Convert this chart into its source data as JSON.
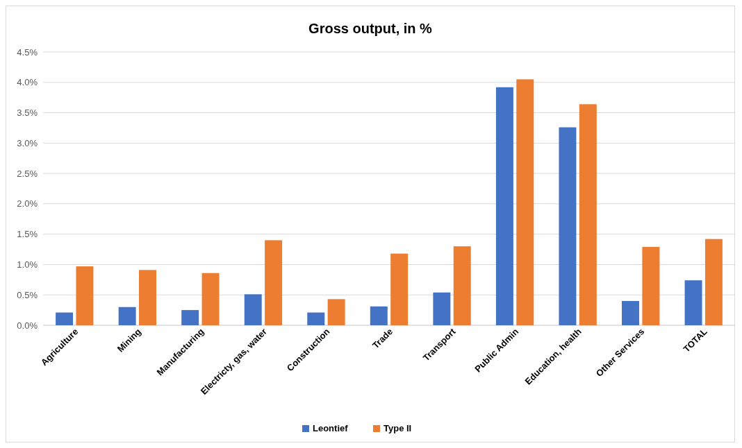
{
  "chart_data": {
    "type": "bar",
    "title": "Gross output, in %",
    "categories": [
      "Agriculture",
      "Mining",
      "Manufacturing",
      "Electricty, gas, water",
      "Construction",
      "Trade",
      "Transport",
      "Public Admin",
      "Education, health",
      "Other Services",
      "TOTAL"
    ],
    "series": [
      {
        "name": "Leontief",
        "color": "#4472c4",
        "values": [
          0.21,
          0.3,
          0.25,
          0.51,
          0.21,
          0.31,
          0.54,
          3.92,
          3.26,
          0.4,
          0.74
        ]
      },
      {
        "name": "Type II",
        "color": "#ed7d31",
        "values": [
          0.97,
          0.91,
          0.86,
          1.4,
          0.43,
          1.18,
          1.3,
          4.05,
          3.64,
          1.29,
          1.42
        ]
      }
    ],
    "ylim": [
      0,
      4.5
    ],
    "yticks": [
      {
        "value": 0,
        "label": "0.0%"
      },
      {
        "value": 0.5,
        "label": "0.5%"
      },
      {
        "value": 1,
        "label": "1.0%"
      },
      {
        "value": 1.5,
        "label": "1.5%"
      },
      {
        "value": 2,
        "label": "2.0%"
      },
      {
        "value": 2.5,
        "label": "2.5%"
      },
      {
        "value": 3,
        "label": "3.0%"
      },
      {
        "value": 3.5,
        "label": "3.5%"
      },
      {
        "value": 4,
        "label": "4.0%"
      },
      {
        "value": 4.5,
        "label": "4.5%"
      }
    ],
    "grid": "y",
    "legend": "bottom"
  }
}
